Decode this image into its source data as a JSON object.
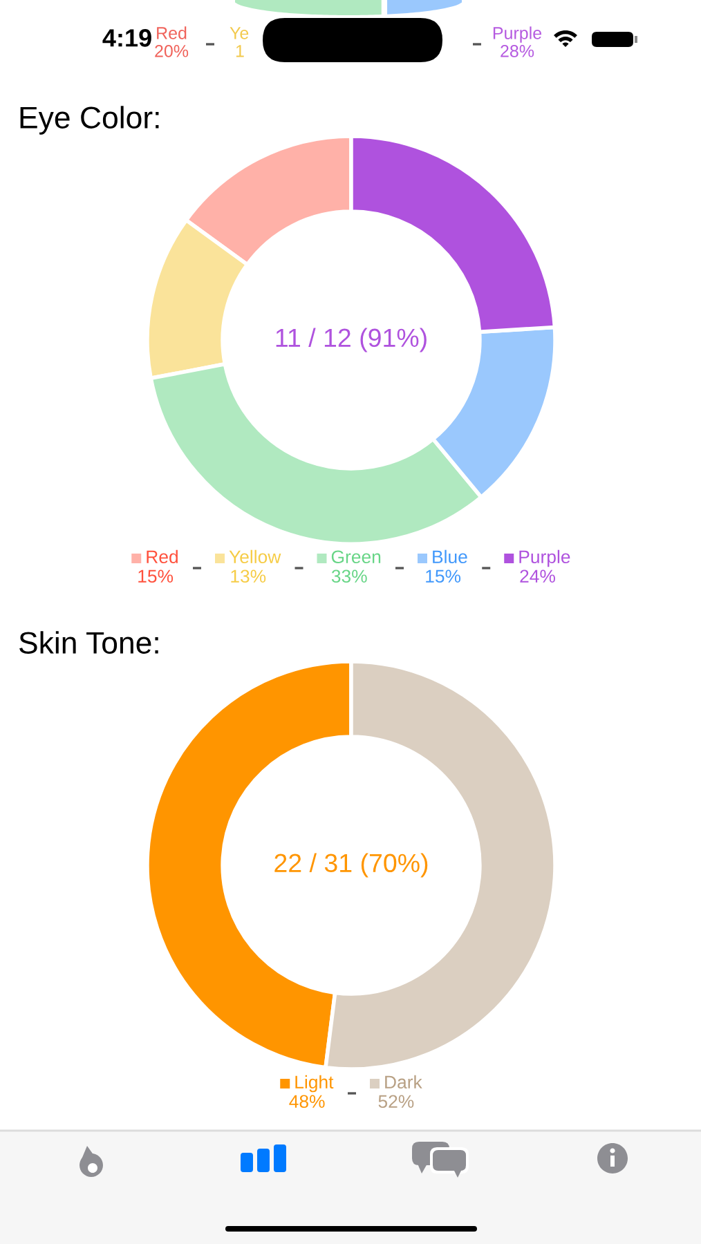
{
  "chart_data": [
    {
      "type": "other",
      "annotations": [
        "4:19",
        "Red",
        "20%",
        "Ye",
        "1",
        "Purple",
        "28%"
      ]
    },
    {
      "type": "donut",
      "title": "Eye Color:",
      "categories": [
        "Red",
        "Yellow",
        "Green",
        "Blue",
        "Purple"
      ],
      "values": [
        15,
        13,
        33,
        15,
        24
      ],
      "colors": [
        "#ffb1a8",
        "#fae39a",
        "#b0e9c0",
        "#9ac8fd",
        "#af52de"
      ],
      "value_labels": [
        "15%",
        "13%",
        "33%",
        "15%",
        "24%"
      ],
      "annotations": [
        "11 / 12 (91%)"
      ],
      "legend": "bottom"
    },
    {
      "type": "donut",
      "title": "Skin Tone:",
      "categories": [
        "Light",
        "Dark"
      ],
      "values": [
        48,
        52
      ],
      "colors": [
        "#ff9500",
        "#dbcfc1"
      ],
      "value_labels": [
        "48%",
        "52%"
      ],
      "annotations": [
        "22 / 31 (70%)"
      ],
      "legend": "bottom"
    }
  ]
}
